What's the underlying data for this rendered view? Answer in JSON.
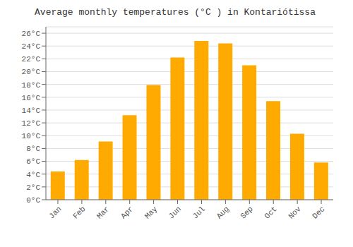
{
  "chart_data": {
    "type": "bar",
    "title": "Average monthly temperatures (°C ) in Kontariótissa",
    "categories": [
      "Jan",
      "Feb",
      "Mar",
      "Apr",
      "May",
      "Jun",
      "Jul",
      "Aug",
      "Sep",
      "Oct",
      "Nov",
      "Dec"
    ],
    "values": [
      4.4,
      6.2,
      9.1,
      13.2,
      17.9,
      22.2,
      24.8,
      24.4,
      21.0,
      15.4,
      10.3,
      5.8
    ],
    "color": "#FFAA00",
    "ylim": [
      0,
      27
    ],
    "yticks": [
      {
        "value": 0,
        "label": "0°C"
      },
      {
        "value": 2,
        "label": "2°C"
      },
      {
        "value": 4,
        "label": "4°C"
      },
      {
        "value": 6,
        "label": "6°C"
      },
      {
        "value": 8,
        "label": "8°C"
      },
      {
        "value": 10,
        "label": "10°C"
      },
      {
        "value": 12,
        "label": "12°C"
      },
      {
        "value": 14,
        "label": "14°C"
      },
      {
        "value": 16,
        "label": "16°C"
      },
      {
        "value": 18,
        "label": "18°C"
      },
      {
        "value": 20,
        "label": "20°C"
      },
      {
        "value": 22,
        "label": "22°C"
      },
      {
        "value": 24,
        "label": "24°C"
      },
      {
        "value": 26,
        "label": "26°C"
      }
    ],
    "grid": true
  }
}
